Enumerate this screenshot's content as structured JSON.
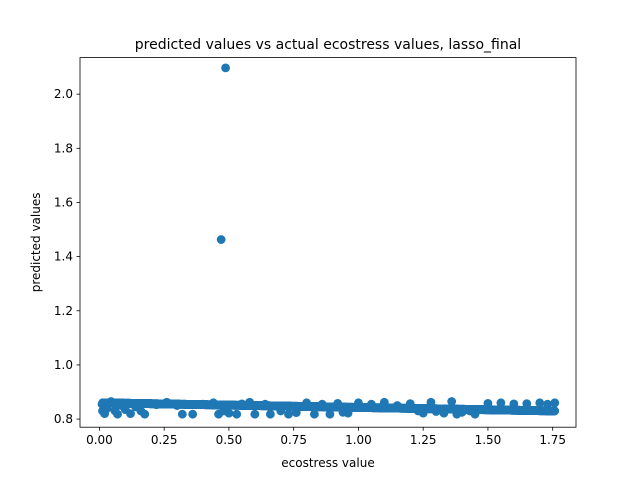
{
  "chart_data": {
    "type": "scatter",
    "title": "predicted values vs actual ecostress values, lasso_final",
    "xlabel": "ecostress value",
    "ylabel": "predicted values",
    "xlim": [
      -0.075,
      1.84
    ],
    "ylim": [
      0.77,
      2.135
    ],
    "xticks": [
      0.0,
      0.25,
      0.5,
      0.75,
      1.0,
      1.25,
      1.5,
      1.75
    ],
    "xtick_labels": [
      "0.00",
      "0.25",
      "0.50",
      "0.75",
      "1.00",
      "1.25",
      "1.50",
      "1.75"
    ],
    "yticks": [
      0.8,
      1.0,
      1.2,
      1.4,
      1.6,
      1.8,
      2.0
    ],
    "ytick_labels": [
      "0.8",
      "1.0",
      "1.2",
      "1.4",
      "1.6",
      "1.8",
      "2.0"
    ],
    "grid": false,
    "marker_color": "#1f77b4",
    "series": [
      {
        "points": [
          [
            0.487,
            2.097
          ],
          [
            0.47,
            1.463
          ],
          [
            0.01,
            0.855
          ],
          [
            0.02,
            0.82
          ],
          [
            0.03,
            0.84
          ],
          [
            0.045,
            0.865
          ],
          [
            0.06,
            0.83
          ],
          [
            0.07,
            0.818
          ],
          [
            0.085,
            0.85
          ],
          [
            0.1,
            0.835
          ],
          [
            0.12,
            0.82
          ],
          [
            0.14,
            0.845
          ],
          [
            0.16,
            0.83
          ],
          [
            0.175,
            0.818
          ],
          [
            0.19,
            0.858
          ],
          [
            0.22,
            0.853
          ],
          [
            0.26,
            0.862
          ],
          [
            0.3,
            0.85
          ],
          [
            0.32,
            0.818
          ],
          [
            0.36,
            0.818
          ],
          [
            0.4,
            0.855
          ],
          [
            0.44,
            0.86
          ],
          [
            0.46,
            0.818
          ],
          [
            0.48,
            0.83
          ],
          [
            0.5,
            0.822
          ],
          [
            0.53,
            0.818
          ],
          [
            0.55,
            0.856
          ],
          [
            0.58,
            0.862
          ],
          [
            0.6,
            0.818
          ],
          [
            0.64,
            0.855
          ],
          [
            0.66,
            0.818
          ],
          [
            0.7,
            0.83
          ],
          [
            0.73,
            0.818
          ],
          [
            0.76,
            0.824
          ],
          [
            0.8,
            0.86
          ],
          [
            0.83,
            0.818
          ],
          [
            0.86,
            0.855
          ],
          [
            0.89,
            0.818
          ],
          [
            0.92,
            0.858
          ],
          [
            0.94,
            0.825
          ],
          [
            0.96,
            0.822
          ],
          [
            1.0,
            0.86
          ],
          [
            1.05,
            0.855
          ],
          [
            1.1,
            0.862
          ],
          [
            1.15,
            0.85
          ],
          [
            1.2,
            0.857
          ],
          [
            1.23,
            0.83
          ],
          [
            1.25,
            0.822
          ],
          [
            1.28,
            0.862
          ],
          [
            1.3,
            0.828
          ],
          [
            1.33,
            0.822
          ],
          [
            1.36,
            0.865
          ],
          [
            1.38,
            0.818
          ],
          [
            1.4,
            0.825
          ],
          [
            1.43,
            0.83
          ],
          [
            1.45,
            0.818
          ],
          [
            1.47,
            0.835
          ],
          [
            1.5,
            0.858
          ],
          [
            1.55,
            0.86
          ],
          [
            1.6,
            0.856
          ],
          [
            1.65,
            0.857
          ],
          [
            1.7,
            0.86
          ],
          [
            1.73,
            0.855
          ],
          [
            1.758,
            0.86
          ]
        ]
      }
    ]
  }
}
